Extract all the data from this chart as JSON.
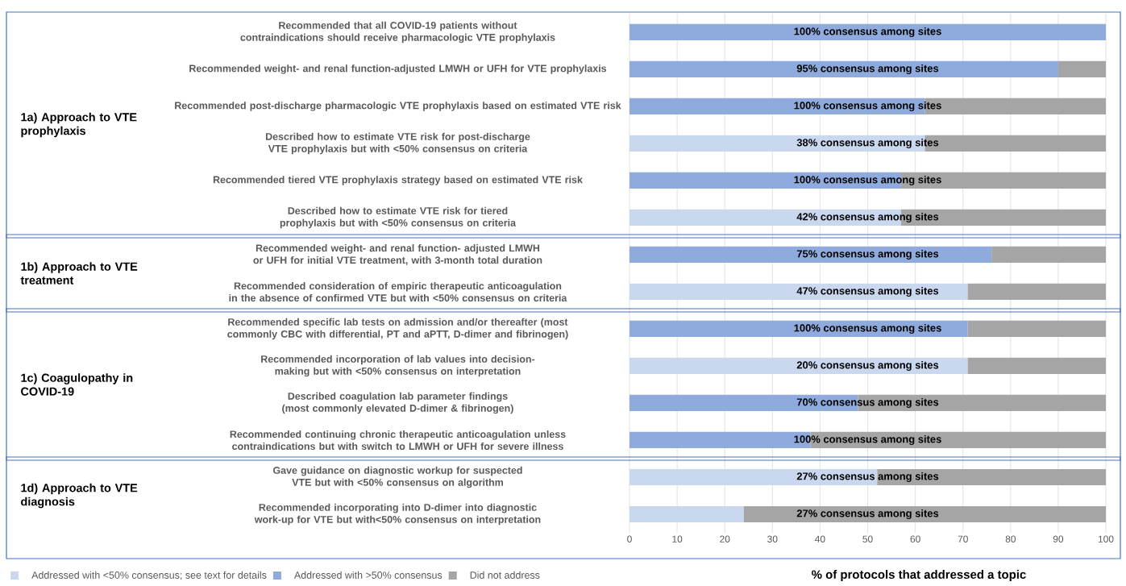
{
  "chart_data": [
    {
      "type": "bar",
      "orientation": "horizontal",
      "stacked": true,
      "ylabel": "1a) Approach to VTE prophylaxis",
      "categories": [
        "Recommended that all COVID-19 patients without contraindications should receive pharmacologic VTE prophylaxis",
        "Recommended weight- and renal function-adjusted LMWH or UFH for VTE prophylaxis",
        "Recommended post-discharge pharmacologic VTE prophylaxis based on estimated VTE risk",
        "Described how to estimate VTE risk for post-discharge VTE prophylaxis but with <50% consensus on criteria",
        "Recommended tiered VTE prophylaxis strategy based on estimated VTE risk",
        "Described how to estimate VTE risk for tiered prophylaxis but with <50% consensus on criteria"
      ],
      "series": [
        {
          "color": "#c9d7ef",
          "values": [
            null,
            null,
            null,
            62,
            null,
            57
          ]
        },
        {
          "color": "#8faadc",
          "values": [
            100,
            90,
            62,
            null,
            57,
            null
          ]
        },
        {
          "color": "#a5a5a5",
          "values": [
            null,
            10,
            38,
            38,
            43,
            43
          ]
        }
      ],
      "annotations": [
        "100% consensus among sites",
        "95% consensus among sites",
        "100% consensus among sites",
        "38% consensus among sites",
        "100% consensus among sites",
        "42% consensus among sites"
      ],
      "xlim": [
        0,
        100
      ],
      "xticks": [
        0,
        10,
        20,
        30,
        40,
        50,
        60,
        70,
        80,
        90,
        100
      ],
      "tick_labels": "y",
      "grid": "x"
    },
    {
      "type": "bar",
      "orientation": "horizontal",
      "stacked": true,
      "ylabel": "1b) Approach to VTE treatment",
      "categories": [
        "Recommended weight- and renal function- adjusted LMWH or UFH for initial VTE treatment, with 3-month total duration",
        "Recommended consideration of empiric therapeutic anticoagulation in the absence of confirmed VTE but with <50% consensus on criteria"
      ],
      "series": [
        {
          "color": "#c9d7ef",
          "values": [
            null,
            71
          ]
        },
        {
          "color": "#8faadc",
          "values": [
            76,
            null
          ]
        },
        {
          "color": "#a5a5a5",
          "values": [
            24,
            29
          ]
        }
      ],
      "annotations": [
        "75% consensus among sites",
        "47% consensus among sites"
      ],
      "xlim": [
        0,
        100
      ],
      "xticks": [
        0,
        10,
        20,
        30,
        40,
        50,
        60,
        70,
        80,
        90,
        100
      ],
      "tick_labels": "y",
      "grid": "x"
    },
    {
      "type": "bar",
      "orientation": "horizontal",
      "stacked": true,
      "ylabel": "1c) Coagulopathy in COVID-19",
      "categories": [
        "Recommended specific lab tests on admission and/or thereafter (most commonly CBC with differential, PT and aPTT, D-dimer and fibrinogen)",
        "Recommended incorporation of lab values into decision-making but with <50% consensus on interpretation",
        "Described coagulation lab parameter findings (most commonly elevated D-dimer & fibrinogen)",
        "Recommended continuing chronic therapeutic anticoagulation unless contraindications but with switch to LMWH or UFH for severe illness"
      ],
      "series": [
        {
          "color": "#c9d7ef",
          "values": [
            null,
            71,
            null,
            null
          ]
        },
        {
          "color": "#8faadc",
          "values": [
            71,
            null,
            48,
            38
          ]
        },
        {
          "color": "#a5a5a5",
          "values": [
            29,
            29,
            52,
            62
          ]
        }
      ],
      "annotations": [
        "100% consensus among sites",
        "20% consensus among sites",
        "70% consensus among sites",
        "100% consensus among sites"
      ],
      "xlim": [
        0,
        100
      ],
      "xticks": [
        0,
        10,
        20,
        30,
        40,
        50,
        60,
        70,
        80,
        90,
        100
      ],
      "tick_labels": "y",
      "grid": "x"
    },
    {
      "type": "bar",
      "orientation": "horizontal",
      "stacked": true,
      "ylabel": "1d) Approach to VTE diagnosis",
      "xlabel": "% of protocols that addressed a topic",
      "categories": [
        "Gave guidance on diagnostic workup for suspected VTE but with <50% consensus on algorithm",
        "Recommended incorporating into D-dimer into diagnostic work-up for VTE but with<50% consensus on interpretation"
      ],
      "series": [
        {
          "name": "Addressed with <50% consensus; see text for details",
          "color": "#c9d7ef",
          "values": [
            52,
            24
          ]
        },
        {
          "name": "Addressed with >50% consensus",
          "color": "#8faadc",
          "values": [
            null,
            null
          ]
        },
        {
          "name": "Did not address",
          "color": "#a5a5a5",
          "values": [
            48,
            76
          ]
        }
      ],
      "annotations": [
        "27% consensus among sites",
        "27% consensus among sites"
      ],
      "xlim": [
        0,
        100
      ],
      "xticks": [
        0,
        10,
        20,
        30,
        40,
        50,
        60,
        70,
        80,
        90,
        100
      ],
      "grid": "x",
      "legend": "bottom"
    }
  ]
}
